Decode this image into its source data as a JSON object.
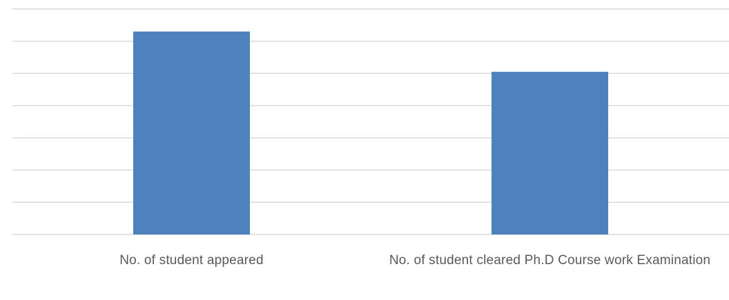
{
  "chart_data": {
    "type": "bar",
    "categories": [
      "No. of student appeared",
      "No. of student cleared Ph.D Course work Examination"
    ],
    "values": [
      63,
      50.5
    ],
    "ylim": [
      0,
      70
    ],
    "grid": true,
    "gridline_step": 10,
    "bar_color": "#4f81bd",
    "grid_color": "#d9d9d9",
    "label_color": "#595959",
    "legend": "none"
  }
}
